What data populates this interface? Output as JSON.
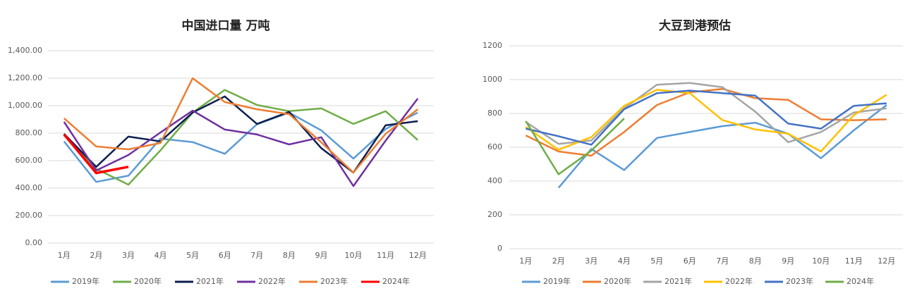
{
  "chart_data": [
    {
      "type": "line",
      "title": "中国进口量 万吨",
      "categories": [
        "1月",
        "2月",
        "3月",
        "4月",
        "5月",
        "6月",
        "7月",
        "8月",
        "9月",
        "10月",
        "11月",
        "12月"
      ],
      "ylim": [
        0,
        1400
      ],
      "yticks": [
        {
          "value": 0,
          "label": "0.00"
        },
        {
          "value": 200,
          "label": "200.00"
        },
        {
          "value": 400,
          "label": "400.00"
        },
        {
          "value": 600,
          "label": "600.00"
        },
        {
          "value": 800,
          "label": "800.00"
        },
        {
          "value": 1000,
          "label": "1,000.00"
        },
        {
          "value": 1200,
          "label": "1,200.00"
        },
        {
          "value": 1400,
          "label": "1,400.00"
        }
      ],
      "grid": true,
      "legend": "bottom",
      "series": [
        {
          "name": "2019年",
          "color": "#5b9bd5",
          "values": [
            740,
            445,
            490,
            760,
            735,
            650,
            865,
            950,
            820,
            615,
            830,
            950
          ]
        },
        {
          "name": "2020年",
          "color": "#70ad47",
          "values": [
            785,
            540,
            425,
            675,
            950,
            1115,
            1005,
            960,
            980,
            867,
            960,
            750
          ]
        },
        {
          "name": "2021年",
          "color": "#0d1f4f",
          "values": [
            795,
            555,
            775,
            740,
            950,
            1067,
            867,
            955,
            690,
            513,
            857,
            887
          ]
        },
        {
          "name": "2022年",
          "color": "#7030a0",
          "values": [
            882,
            528,
            641,
            805,
            964,
            826,
            790,
            718,
            770,
            415,
            745,
            1052
          ]
        },
        {
          "name": "2023年",
          "color": "#ed7d31",
          "values": [
            908,
            703,
            682,
            728,
            1200,
            1026,
            974,
            938,
            733,
            513,
            795,
            974
          ]
        },
        {
          "name": "2024年",
          "color": "#ff0000",
          "values": [
            790,
            510,
            555,
            null,
            null,
            null,
            null,
            null,
            null,
            null,
            null,
            null
          ]
        }
      ]
    },
    {
      "type": "line",
      "title": "大豆到港预估",
      "categories": [
        "1月",
        "2月",
        "3月",
        "4月",
        "5月",
        "6月",
        "7月",
        "8月",
        "9月",
        "10月",
        "11月",
        "12月"
      ],
      "ylim": [
        0,
        1200
      ],
      "yticks": [
        0,
        200,
        400,
        600,
        800,
        1000,
        1200
      ],
      "grid": true,
      "legend": "bottom",
      "series": [
        {
          "name": "2019年",
          "color": "#5b9bd5",
          "values": [
            null,
            360,
            590,
            465,
            655,
            690,
            725,
            745,
            680,
            535,
            700,
            850
          ]
        },
        {
          "name": "2020年",
          "color": "#ed7d31",
          "values": [
            670,
            575,
            550,
            690,
            850,
            925,
            945,
            890,
            880,
            765,
            760,
            765
          ]
        },
        {
          "name": "2021年",
          "color": "#a5a5a5",
          "values": [
            750,
            620,
            640,
            830,
            970,
            980,
            955,
            810,
            630,
            690,
            805,
            830
          ]
        },
        {
          "name": "2022年",
          "color": "#ffc000",
          "values": [
            720,
            585,
            660,
            845,
            940,
            920,
            760,
            705,
            680,
            575,
            790,
            910
          ]
        },
        {
          "name": "2023年",
          "color": "#4472c4",
          "values": [
            710,
            665,
            615,
            825,
            920,
            935,
            920,
            905,
            740,
            710,
            845,
            860
          ]
        },
        {
          "name": "2024年",
          "color": "#70ad47",
          "values": [
            755,
            440,
            580,
            770,
            null,
            null,
            null,
            null,
            null,
            null,
            null,
            null
          ]
        }
      ]
    }
  ]
}
